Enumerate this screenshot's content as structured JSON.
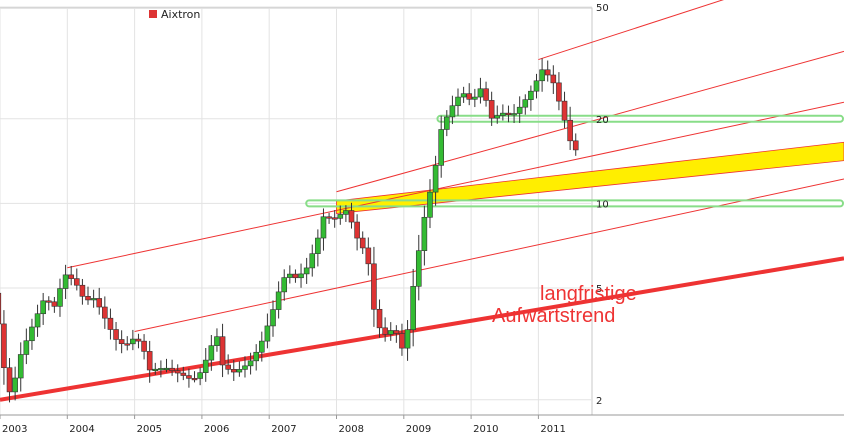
{
  "chart_data": {
    "type": "candlestick",
    "title": "",
    "xlabel": "",
    "ylabel": "",
    "scale": "log",
    "ylim": [
      1.78,
      50
    ],
    "xlim": [
      2003.0,
      2011.65
    ],
    "grid": true,
    "legend": {
      "placement": "top-left",
      "entries": [
        {
          "label": "Aixtron",
          "color": "#dd3333"
        }
      ]
    },
    "y_ticks": [
      {
        "value": 50,
        "label": "50"
      },
      {
        "value": 20,
        "label": "20"
      },
      {
        "value": 10,
        "label": "10"
      },
      {
        "value": 5,
        "label": "5"
      },
      {
        "value": 2,
        "label": "2"
      }
    ],
    "x_ticks": [
      {
        "value": 2003,
        "label": "2003"
      },
      {
        "value": 2004,
        "label": "2004"
      },
      {
        "value": 2005,
        "label": "2005"
      },
      {
        "value": 2006,
        "label": "2006"
      },
      {
        "value": 2007,
        "label": "2007"
      },
      {
        "value": 2008,
        "label": "2008"
      },
      {
        "value": 2009,
        "label": "2009"
      },
      {
        "value": 2010,
        "label": "2010"
      },
      {
        "value": 2011,
        "label": "2011"
      }
    ],
    "anchors": [
      [
        2002.85,
        6.0
      ],
      [
        2003.0,
        4.0
      ],
      [
        2003.1,
        2.6
      ],
      [
        2003.2,
        2.05
      ],
      [
        2003.35,
        2.9
      ],
      [
        2003.55,
        3.8
      ],
      [
        2003.7,
        4.6
      ],
      [
        2003.85,
        4.3
      ],
      [
        2004.0,
        5.6
      ],
      [
        2004.15,
        5.3
      ],
      [
        2004.3,
        4.5
      ],
      [
        2004.45,
        4.6
      ],
      [
        2004.6,
        3.9
      ],
      [
        2004.75,
        3.3
      ],
      [
        2004.9,
        3.1
      ],
      [
        2005.0,
        3.3
      ],
      [
        2005.15,
        3.2
      ],
      [
        2005.25,
        2.55
      ],
      [
        2005.5,
        2.6
      ],
      [
        2005.75,
        2.45
      ],
      [
        2005.9,
        2.35
      ],
      [
        2006.0,
        2.45
      ],
      [
        2006.15,
        2.95
      ],
      [
        2006.25,
        3.5
      ],
      [
        2006.35,
        2.65
      ],
      [
        2006.5,
        2.5
      ],
      [
        2006.65,
        2.6
      ],
      [
        2006.8,
        2.8
      ],
      [
        2006.95,
        3.3
      ],
      [
        2007.1,
        4.2
      ],
      [
        2007.2,
        5.0
      ],
      [
        2007.3,
        5.7
      ],
      [
        2007.45,
        5.4
      ],
      [
        2007.6,
        5.9
      ],
      [
        2007.75,
        7.3
      ],
      [
        2007.85,
        9.0
      ],
      [
        2008.0,
        8.8
      ],
      [
        2008.2,
        9.5
      ],
      [
        2008.35,
        7.5
      ],
      [
        2008.5,
        6.5
      ],
      [
        2008.62,
        3.8
      ],
      [
        2008.75,
        3.4
      ],
      [
        2008.9,
        3.6
      ],
      [
        2009.05,
        2.9
      ],
      [
        2009.2,
        5.5
      ],
      [
        2009.35,
        9.0
      ],
      [
        2009.5,
        13.0
      ],
      [
        2009.6,
        18.5
      ],
      [
        2009.75,
        22.0
      ],
      [
        2009.9,
        25.0
      ],
      [
        2010.05,
        23.0
      ],
      [
        2010.2,
        26.0
      ],
      [
        2010.35,
        20.0
      ],
      [
        2010.5,
        21.0
      ],
      [
        2010.65,
        20.5
      ],
      [
        2010.8,
        22.5
      ],
      [
        2010.95,
        25.5
      ],
      [
        2011.1,
        30.0
      ],
      [
        2011.25,
        27.5
      ],
      [
        2011.4,
        21.0
      ],
      [
        2011.55,
        15.5
      ]
    ],
    "candle_step_years": 0.0833,
    "up_color": "#33bb33",
    "down_color": "#dd3333",
    "trendlines": [
      {
        "x1": 2003.0,
        "y1": 2.0,
        "x2": 2011.65,
        "y2": 4.45,
        "color": "#ee3333",
        "style": "thick"
      },
      {
        "x1": 2005.0,
        "y1": 3.5,
        "x2": 2011.65,
        "y2": 7.7,
        "color": "#ee3333",
        "style": "thin"
      },
      {
        "x1": 2004.0,
        "y1": 5.9,
        "x2": 2011.65,
        "y2": 14.5,
        "color": "#ee3333",
        "style": "thin"
      },
      {
        "x1": 2008.0,
        "y1": 11.0,
        "x2": 2011.65,
        "y2": 19.2,
        "color": "#ee3333",
        "style": "thin"
      },
      {
        "x1": 2011.0,
        "y1": 32.5,
        "x2": 2011.65,
        "y2": 36.5,
        "color": "#ee3333",
        "style": "thin"
      }
    ],
    "channel": {
      "x1": 2008.0,
      "lower1": 9.2,
      "upper1": 10.2,
      "x2": 2011.65,
      "lower2": 14.2,
      "upper2": 16.5,
      "color": "#ffee00"
    },
    "support_zones": [
      {
        "x1": 2009.5,
        "x2": 2011.65,
        "value": 20.0,
        "color": "#88dd88"
      },
      {
        "x1": 2007.55,
        "x2": 2011.65,
        "value": 10.0,
        "color": "#88dd88"
      }
    ],
    "annotations": [
      {
        "text": "langfristige"
      },
      {
        "text": "Aufwärtstrend"
      }
    ]
  }
}
